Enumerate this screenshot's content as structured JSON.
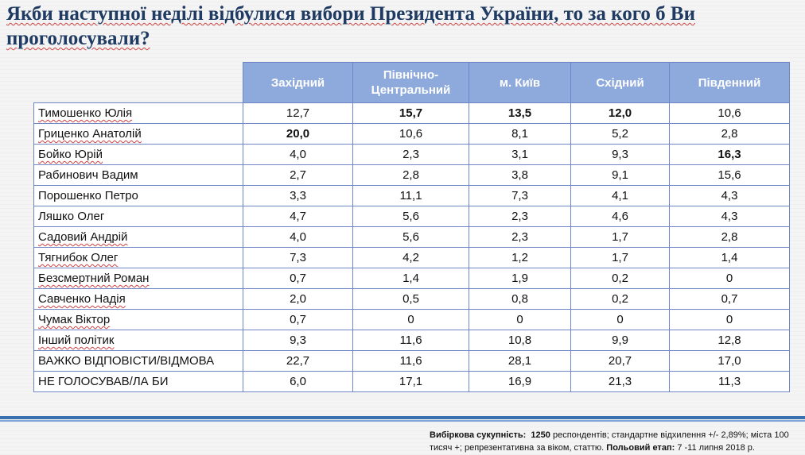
{
  "title": "Якби наступної неділі відбулися вибори Президента України, то за кого б Ви проголосували?",
  "table": {
    "headers": [
      "Західний",
      "Північно-Центральний",
      "м. Київ",
      "Східний",
      "Південний"
    ],
    "rows": [
      {
        "name": "Тимошенко Юлія",
        "values": [
          "12,7",
          "15,7",
          "13,5",
          "12,0",
          "10,6"
        ],
        "bold": [
          false,
          true,
          true,
          true,
          false
        ]
      },
      {
        "name": "Гриценко Анатолій",
        "values": [
          "20,0",
          "10,6",
          "8,1",
          "5,2",
          "2,8"
        ],
        "bold": [
          true,
          false,
          false,
          false,
          false
        ]
      },
      {
        "name": "Бойко Юрій",
        "values": [
          "4,0",
          "2,3",
          "3,1",
          "9,3",
          "16,3"
        ],
        "bold": [
          false,
          false,
          false,
          false,
          true
        ]
      },
      {
        "name": "Рабинович Вадим",
        "values": [
          "2,7",
          "2,8",
          "3,8",
          "9,1",
          "15,6"
        ],
        "bold": [
          false,
          false,
          false,
          false,
          false
        ]
      },
      {
        "name": "Порошенко Петро",
        "values": [
          "3,3",
          "11,1",
          "7,3",
          "4,1",
          "4,3"
        ],
        "bold": [
          false,
          false,
          false,
          false,
          false
        ]
      },
      {
        "name": "Ляшко Олег",
        "values": [
          "4,7",
          "5,6",
          "2,3",
          "4,6",
          "4,3"
        ],
        "bold": [
          false,
          false,
          false,
          false,
          false
        ]
      },
      {
        "name": "Садовий Андрій",
        "values": [
          "4,0",
          "5,6",
          "2,3",
          "1,7",
          "2,8"
        ],
        "bold": [
          false,
          false,
          false,
          false,
          false
        ]
      },
      {
        "name": "Тягнибок Олег",
        "values": [
          "7,3",
          "4,2",
          "1,2",
          "1,7",
          "1,4"
        ],
        "bold": [
          false,
          false,
          false,
          false,
          false
        ]
      },
      {
        "name": "Безсмертний Роман",
        "values": [
          "0,7",
          "1,4",
          "1,9",
          "0,2",
          "0"
        ],
        "bold": [
          false,
          false,
          false,
          false,
          false
        ]
      },
      {
        "name": "Савченко Надія",
        "values": [
          "2,0",
          "0,5",
          "0,8",
          "0,2",
          "0,7"
        ],
        "bold": [
          false,
          false,
          false,
          false,
          false
        ]
      },
      {
        "name": "Чумак Віктор",
        "values": [
          "0,7",
          "0",
          "0",
          "0",
          "0"
        ],
        "bold": [
          false,
          false,
          false,
          false,
          false
        ]
      },
      {
        "name": "Інший політик",
        "values": [
          "9,3",
          "11,6",
          "10,8",
          "9,9",
          "12,8"
        ],
        "bold": [
          false,
          false,
          false,
          false,
          false
        ]
      },
      {
        "name": "ВАЖКО ВІДПОВІСТИ/ВІДМОВА",
        "values": [
          "22,7",
          "11,6",
          "28,1",
          "20,7",
          "17,0"
        ],
        "bold": [
          false,
          false,
          false,
          false,
          false
        ]
      },
      {
        "name": "НЕ ГОЛОСУВАВ/ЛА БИ",
        "values": [
          "6,0",
          "17,1",
          "16,9",
          "21,3",
          "11,3"
        ],
        "bold": [
          false,
          false,
          false,
          false,
          false
        ]
      }
    ]
  },
  "footnote": {
    "sample_label": "Вибіркова сукупність:",
    "sample_count": "1250",
    "sample_text": "респондентів; стандартне  відхилення +/- 2,89%; міста 100 тисяч +; репрезентативна за віком, статтю.",
    "stage_label": "Польовий етап:",
    "stage_dates": "7 -11 липня 2018 р."
  }
}
